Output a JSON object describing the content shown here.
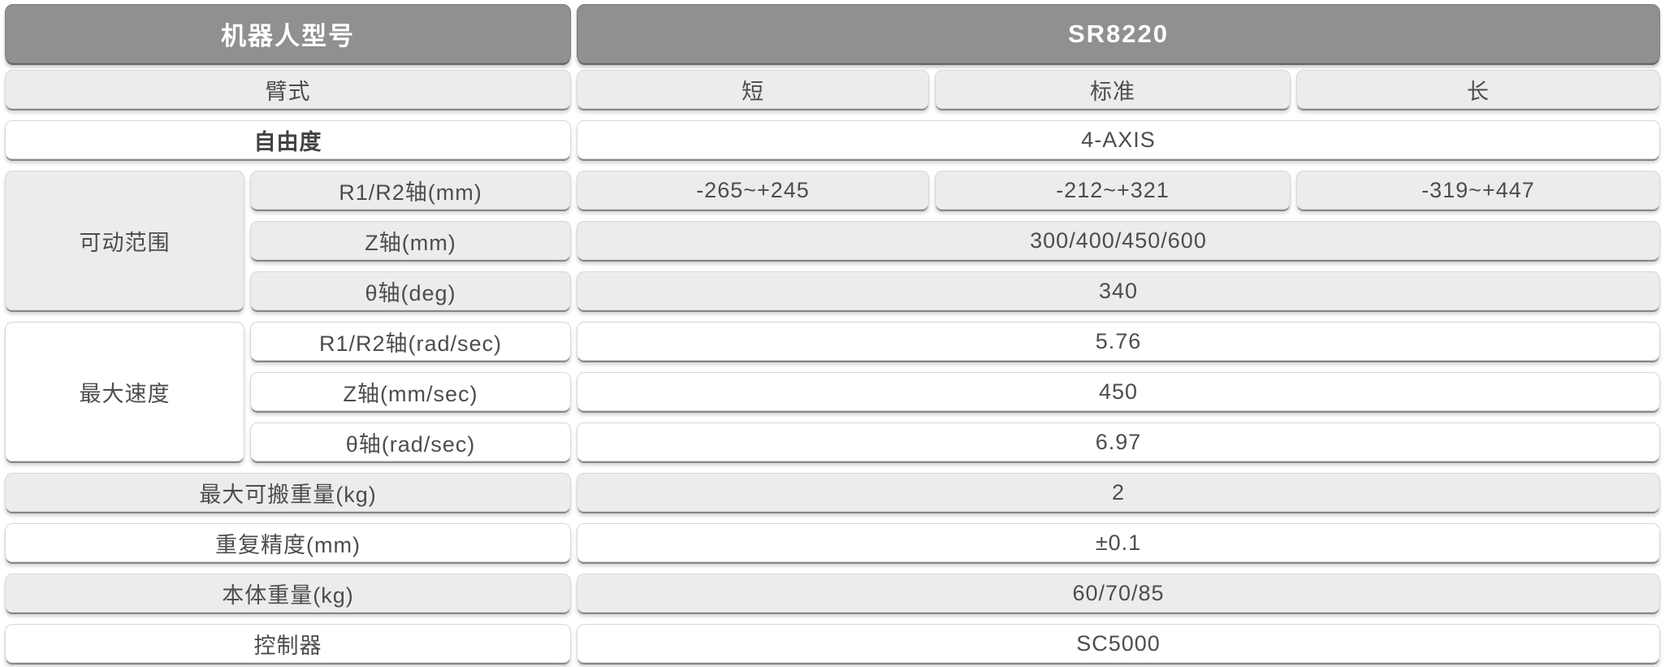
{
  "table": {
    "header": {
      "model_label": "机器人型号",
      "model_value": "SR8220"
    },
    "arm_row": {
      "label": "臂式",
      "cols": [
        "短",
        "标准",
        "长"
      ]
    },
    "dof_row": {
      "label": "自由度",
      "value": "4-AXIS"
    },
    "motion_range": {
      "label": "可动范围",
      "rows": [
        {
          "label": "R1/R2轴(mm)",
          "values": [
            "-265~+245",
            "-212~+321",
            "-319~+447"
          ]
        },
        {
          "label": "Z轴(mm)",
          "value": "300/400/450/600"
        },
        {
          "label": "θ轴(deg)",
          "value": "340"
        }
      ]
    },
    "max_speed": {
      "label": "最大速度",
      "rows": [
        {
          "label": "R1/R2轴(rad/sec)",
          "value": "5.76"
        },
        {
          "label": "Z轴(mm/sec)",
          "value": "450"
        },
        {
          "label": "θ轴(rad/sec)",
          "value": "6.97"
        }
      ]
    },
    "simple_rows": [
      {
        "label": "最大可搬重量(kg)",
        "value": "2"
      },
      {
        "label": "重复精度(mm)",
        "value": "±0.1"
      },
      {
        "label": "本体重量(kg)",
        "value": "60/70/85"
      },
      {
        "label": "控制器",
        "value": "SC5000"
      }
    ]
  },
  "colors": {
    "header_bg": "#909090",
    "header_text": "#ffffff",
    "row_gray": "#ececea",
    "row_white": "#ffffff",
    "cell_border": "#d7d7d5",
    "text": "#4d4d4d"
  }
}
